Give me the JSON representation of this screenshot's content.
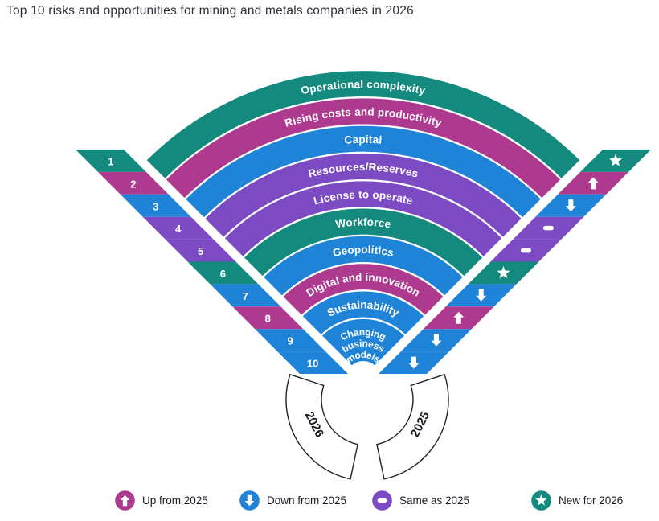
{
  "title": "Top 10 risks and opportunities for mining and metals companies in 2026",
  "colors": {
    "up": "#AE3A90",
    "down": "#1F84D8",
    "same": "#7C4BC4",
    "new": "#14897E"
  },
  "years": {
    "current": "2026",
    "previous": "2025"
  },
  "legend": [
    {
      "status": "up",
      "icon": "up-arrow-icon",
      "label": "Up from 2025"
    },
    {
      "status": "down",
      "icon": "down-arrow-icon",
      "label": "Down from 2025"
    },
    {
      "status": "same",
      "icon": "dash-icon",
      "label": "Same as 2025"
    },
    {
      "status": "new",
      "icon": "star-icon",
      "label": "New for 2026"
    }
  ],
  "chart_data": {
    "type": "table",
    "title": "Top 10 risks and opportunities for mining and metals companies in 2026",
    "description": "Radial fan diagram: 10 concentric bands ranked 1 (outermost) to 10 (innermost); left tabs show rank numbers for 2026, right tabs show change versus 2025",
    "columns": [
      "Rank 2026",
      "Risk or opportunity",
      "Change vs 2025"
    ],
    "rows": [
      [
        1,
        "Operational complexity",
        "new"
      ],
      [
        2,
        "Rising costs and productivity",
        "up"
      ],
      [
        3,
        "Capital",
        "down"
      ],
      [
        4,
        "Resources/Reserves",
        "same"
      ],
      [
        5,
        "License to operate",
        "same"
      ],
      [
        6,
        "Workforce",
        "new"
      ],
      [
        7,
        "Geopolitics",
        "down"
      ],
      [
        8,
        "Digital and innovation",
        "up"
      ],
      [
        9,
        "Sustainability",
        "down"
      ],
      [
        10,
        "Changing business models",
        "down"
      ]
    ],
    "label_lines": {
      "10": [
        "Changing",
        "business",
        "models"
      ]
    },
    "status_legend": {
      "up": "Up from 2025",
      "down": "Down from 2025",
      "same": "Same as 2025",
      "new": "New for 2026"
    }
  }
}
